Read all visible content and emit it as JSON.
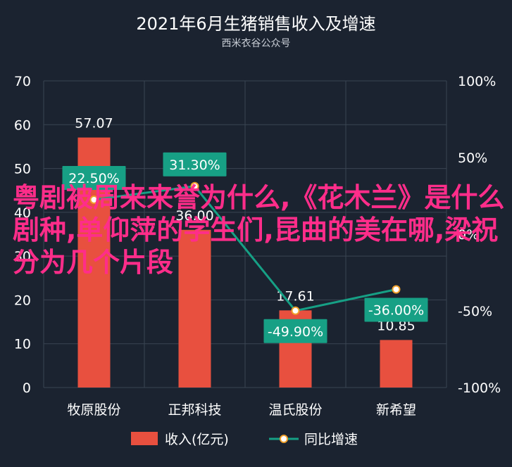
{
  "chart_data": {
    "type": "bar",
    "title": "2021年6月生猪销售收入及增速",
    "subtitle": "西米衣谷公众号",
    "categories": [
      "牧原股份",
      "正邦科技",
      "温氏股份",
      "新希望"
    ],
    "ylim": [
      0,
      70
    ],
    "y_ticks": [
      "0",
      "10",
      "20",
      "30",
      "40",
      "50",
      "60",
      "70"
    ],
    "y2lim": [
      -100,
      100
    ],
    "y2_ticks": [
      "-100%",
      "-50%",
      "0%",
      "50%",
      "100%"
    ],
    "grid": true,
    "legend_position": "bottom",
    "series": [
      {
        "name": "收入(亿元)",
        "type": "bar",
        "axis": "left",
        "values": [
          57.07,
          36.0,
          17.61,
          10.85
        ],
        "labels": [
          "57.07",
          "36.00",
          "17.61",
          "10.85"
        ],
        "color": "#e8503f"
      },
      {
        "name": "同比增速",
        "type": "line",
        "axis": "right",
        "values": [
          22.5,
          31.3,
          -49.9,
          -36.0
        ],
        "labels": [
          "22.50%",
          "31.30%",
          "-49.90%",
          "-36.00%"
        ],
        "color": "#16a085"
      }
    ]
  },
  "colors": {
    "background": "#1b2330",
    "grid": "#3a4452",
    "axis_text": "#ffffff",
    "bar": "#e8503f",
    "line": "#16a085",
    "marker_fill": "#ffffff",
    "marker_stroke": "#f0a02a",
    "label_box": "#17a085"
  },
  "watermark": "粤剧被周来来誉为什么,《花木兰》是什么剧种,单仰萍的学生们,昆曲的美在哪,梁祝分为几个片段"
}
